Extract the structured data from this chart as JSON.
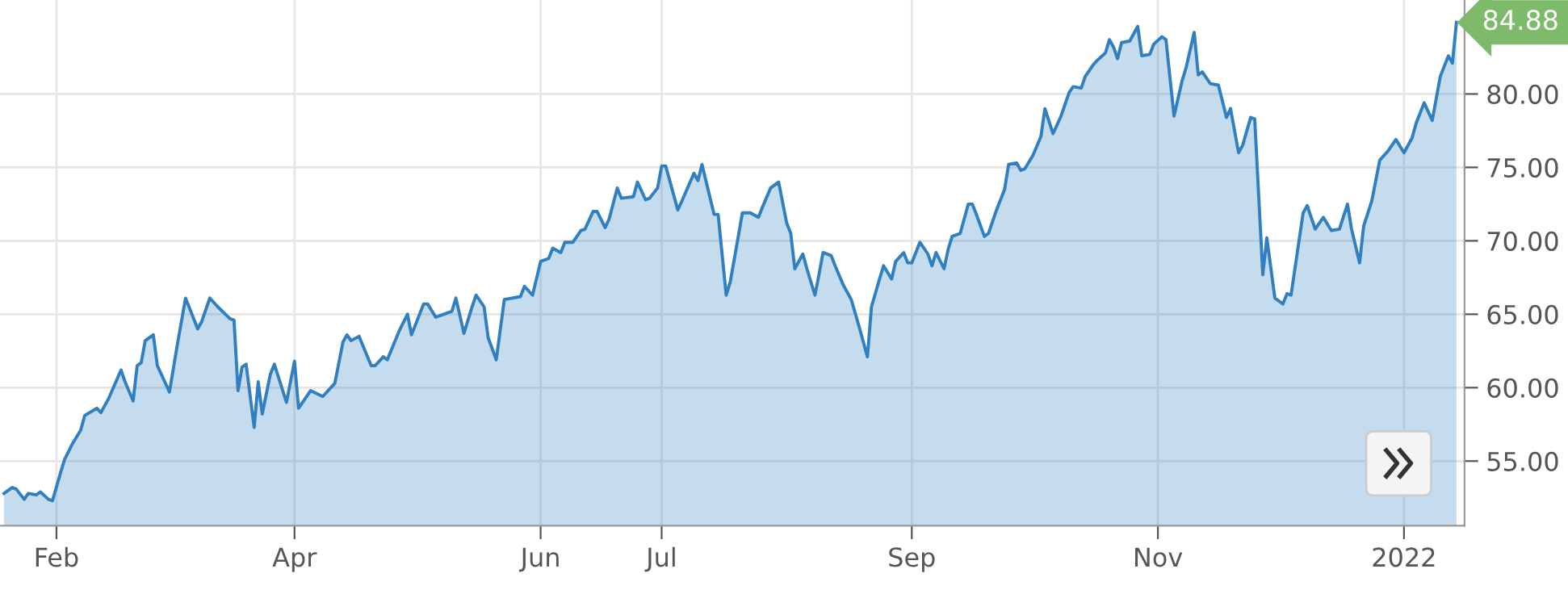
{
  "chart_data": {
    "type": "area",
    "x": [
      "2021-01-19",
      "2021-01-21",
      "2021-01-22",
      "2021-01-24",
      "2021-01-25",
      "2021-01-27",
      "2021-01-28",
      "2021-01-30",
      "2021-01-31",
      "2021-02-02",
      "2021-02-03",
      "2021-02-05",
      "2021-02-07",
      "2021-02-08",
      "2021-02-11",
      "2021-02-12",
      "2021-02-14",
      "2021-02-17",
      "2021-02-18",
      "2021-02-20",
      "2021-02-21",
      "2021-02-22",
      "2021-02-23",
      "2021-02-25",
      "2021-02-26",
      "2021-03-01",
      "2021-03-03",
      "2021-03-05",
      "2021-03-08",
      "2021-03-09",
      "2021-03-11",
      "2021-03-13",
      "2021-03-16",
      "2021-03-17",
      "2021-03-18",
      "2021-03-19",
      "2021-03-20",
      "2021-03-22",
      "2021-03-23",
      "2021-03-24",
      "2021-03-26",
      "2021-03-27",
      "2021-03-30",
      "2021-04-01",
      "2021-04-02",
      "2021-04-05",
      "2021-04-08",
      "2021-04-11",
      "2021-04-13",
      "2021-04-14",
      "2021-04-15",
      "2021-04-17",
      "2021-04-20",
      "2021-04-21",
      "2021-04-23",
      "2021-04-24",
      "2021-04-27",
      "2021-04-29",
      "2021-04-30",
      "2021-05-03",
      "2021-05-04",
      "2021-05-06",
      "2021-05-08",
      "2021-05-10",
      "2021-05-11",
      "2021-05-13",
      "2021-05-15",
      "2021-05-16",
      "2021-05-18",
      "2021-05-19",
      "2021-05-21",
      "2021-05-23",
      "2021-05-27",
      "2021-05-28",
      "2021-05-30",
      "2021-06-01",
      "2021-06-03",
      "2021-06-04",
      "2021-06-06",
      "2021-06-07",
      "2021-06-09",
      "2021-06-11",
      "2021-06-12",
      "2021-06-14",
      "2021-06-15",
      "2021-06-17",
      "2021-06-18",
      "2021-06-20",
      "2021-06-21",
      "2021-06-24",
      "2021-06-25",
      "2021-06-27",
      "2021-06-28",
      "2021-06-30",
      "2021-07-01",
      "2021-07-02",
      "2021-07-05",
      "2021-07-06",
      "2021-07-09",
      "2021-07-10",
      "2021-07-11",
      "2021-07-14",
      "2021-07-15",
      "2021-07-17",
      "2021-07-18",
      "2021-07-20",
      "2021-07-21",
      "2021-07-23",
      "2021-07-25",
      "2021-07-26",
      "2021-07-28",
      "2021-07-30",
      "2021-08-01",
      "2021-08-02",
      "2021-08-03",
      "2021-08-05",
      "2021-08-06",
      "2021-08-08",
      "2021-08-09",
      "2021-08-10",
      "2021-08-12",
      "2021-08-13",
      "2021-08-15",
      "2021-08-17",
      "2021-08-19",
      "2021-08-21",
      "2021-08-22",
      "2021-08-24",
      "2021-08-25",
      "2021-08-27",
      "2021-08-28",
      "2021-08-30",
      "2021-08-31",
      "2021-09-01",
      "2021-09-03",
      "2021-09-05",
      "2021-09-06",
      "2021-09-07",
      "2021-09-09",
      "2021-09-10",
      "2021-09-11",
      "2021-09-13",
      "2021-09-15",
      "2021-09-16",
      "2021-09-17",
      "2021-09-19",
      "2021-09-20",
      "2021-09-22",
      "2021-09-24",
      "2021-09-25",
      "2021-09-27",
      "2021-09-28",
      "2021-09-29",
      "2021-10-01",
      "2021-10-03",
      "2021-10-04",
      "2021-10-06",
      "2021-10-08",
      "2021-10-10",
      "2021-10-11",
      "2021-10-13",
      "2021-10-14",
      "2021-10-16",
      "2021-10-17",
      "2021-10-19",
      "2021-10-20",
      "2021-10-21",
      "2021-10-22",
      "2021-10-23",
      "2021-10-25",
      "2021-10-27",
      "2021-10-28",
      "2021-10-30",
      "2021-10-31",
      "2021-11-02",
      "2021-11-03",
      "2021-11-05",
      "2021-11-07",
      "2021-11-08",
      "2021-11-10",
      "2021-11-11",
      "2021-11-12",
      "2021-11-14",
      "2021-11-16",
      "2021-11-18",
      "2021-11-19",
      "2021-11-21",
      "2021-11-22",
      "2021-11-24",
      "2021-11-25",
      "2021-11-27",
      "2021-11-28",
      "2021-11-30",
      "2021-12-02",
      "2021-12-03",
      "2021-12-04",
      "2021-12-07",
      "2021-12-08",
      "2021-12-10",
      "2021-12-12",
      "2021-12-14",
      "2021-12-16",
      "2021-12-18",
      "2021-12-19",
      "2021-12-21",
      "2021-12-22",
      "2021-12-24",
      "2021-12-26",
      "2021-12-28",
      "2021-12-30",
      "2022-01-01",
      "2022-01-03",
      "2022-01-04",
      "2022-01-06",
      "2022-01-08",
      "2022-01-10",
      "2022-01-12",
      "2022-01-13",
      "2022-01-14"
    ],
    "series": [
      {
        "color": "#2f7fc1",
        "values": [
          52.8,
          53.2,
          53.1,
          52.4,
          52.8,
          52.7,
          52.9,
          52.4,
          52.3,
          54.2,
          55.1,
          56.2,
          57.1,
          58.1,
          58.6,
          58.3,
          59.3,
          61.2,
          60.4,
          59.1,
          61.5,
          61.7,
          63.2,
          63.6,
          61.5,
          59.7,
          63.0,
          66.1,
          64.0,
          64.5,
          66.1,
          65.5,
          64.7,
          64.6,
          59.8,
          61.4,
          61.6,
          57.3,
          60.4,
          58.2,
          60.9,
          61.6,
          59.0,
          61.8,
          58.6,
          59.8,
          59.4,
          60.3,
          63.1,
          63.6,
          63.2,
          63.5,
          61.5,
          61.5,
          62.1,
          61.9,
          63.9,
          65.0,
          63.6,
          65.7,
          65.7,
          64.8,
          65.0,
          65.2,
          66.1,
          63.7,
          65.5,
          66.3,
          65.5,
          63.4,
          61.9,
          66.0,
          66.2,
          66.9,
          66.3,
          68.6,
          68.8,
          69.5,
          69.2,
          69.9,
          69.9,
          70.7,
          70.8,
          72.0,
          72.0,
          70.9,
          71.5,
          73.6,
          72.9,
          73.0,
          74.0,
          72.8,
          72.9,
          73.6,
          75.1,
          75.1,
          72.1,
          72.7,
          74.6,
          74.1,
          75.2,
          71.8,
          71.8,
          66.3,
          67.2,
          70.3,
          71.9,
          71.9,
          71.6,
          72.3,
          73.6,
          74.0,
          71.2,
          70.5,
          68.1,
          69.1,
          68.1,
          66.3,
          67.7,
          69.2,
          69.0,
          68.3,
          67.0,
          66.0,
          64.1,
          62.1,
          65.5,
          67.4,
          68.3,
          67.4,
          68.6,
          69.2,
          68.5,
          68.5,
          69.9,
          69.1,
          68.3,
          69.2,
          68.1,
          69.4,
          70.3,
          70.5,
          72.5,
          72.5,
          71.8,
          70.3,
          70.5,
          72.1,
          73.5,
          75.2,
          75.3,
          74.8,
          74.9,
          75.8,
          77.1,
          79.0,
          77.3,
          78.5,
          80.1,
          80.5,
          80.4,
          81.2,
          82.0,
          82.3,
          82.8,
          83.7,
          83.2,
          82.4,
          83.5,
          83.6,
          84.6,
          82.6,
          82.7,
          83.4,
          83.9,
          83.7,
          78.5,
          80.9,
          81.8,
          84.2,
          81.3,
          81.5,
          80.7,
          80.6,
          78.4,
          79.0,
          76.0,
          76.5,
          78.4,
          78.3,
          67.7,
          70.2,
          66.1,
          65.7,
          66.4,
          66.3,
          71.9,
          72.4,
          70.8,
          71.6,
          70.7,
          70.8,
          72.5,
          70.8,
          68.5,
          71.0,
          72.7,
          75.5,
          76.1,
          76.9,
          76.0,
          77.0,
          78.0,
          79.4,
          78.2,
          81.2,
          82.6,
          82.1,
          84.88
        ]
      }
    ],
    "xlim": [
      "2021-01-18",
      "2022-01-16"
    ],
    "xticks": [
      {
        "value": "2021-02-01",
        "label": "Feb"
      },
      {
        "value": "2021-04-01",
        "label": "Apr"
      },
      {
        "value": "2021-06-01",
        "label": "Jun"
      },
      {
        "value": "2021-07-01",
        "label": "Jul"
      },
      {
        "value": "2021-09-01",
        "label": "Sep"
      },
      {
        "value": "2021-11-01",
        "label": "Nov"
      },
      {
        "value": "2022-01-01",
        "label": "2022"
      }
    ],
    "ylim": [
      50.6,
      86.4
    ],
    "yticks": [
      {
        "value": 55,
        "label": "55.00"
      },
      {
        "value": 60,
        "label": "60.00"
      },
      {
        "value": 65,
        "label": "65.00"
      },
      {
        "value": 70,
        "label": "70.00"
      },
      {
        "value": 75,
        "label": "75.00"
      },
      {
        "value": 80,
        "label": "80.00"
      }
    ],
    "annotations": [
      {
        "text": "84.88",
        "x": "2022-01-14",
        "y": 84.88
      }
    ],
    "grid": true,
    "legend": false
  }
}
